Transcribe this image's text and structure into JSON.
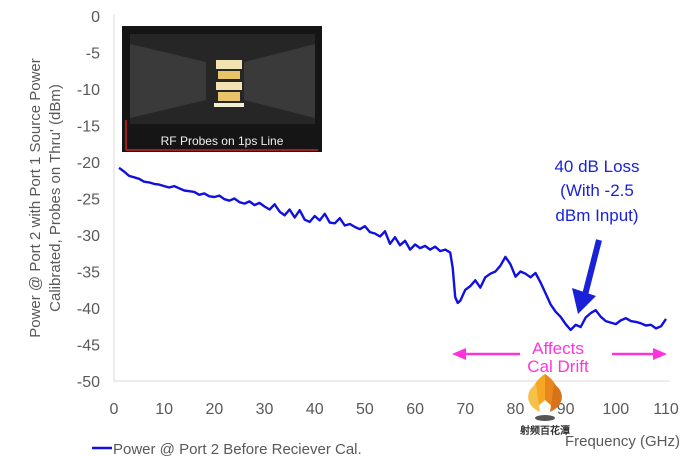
{
  "chart_data": {
    "type": "line",
    "xlabel": "Frequency (GHz)",
    "ylabel_lines": [
      "Power @ Port 2 with Port 1 Source Power",
      "Calibrated, Probes on Thru' (dBm)"
    ],
    "xlim": [
      0,
      110
    ],
    "ylim": [
      -50,
      0
    ],
    "x_ticks": [
      0,
      10,
      20,
      30,
      40,
      50,
      60,
      70,
      80,
      90,
      100,
      110
    ],
    "y_ticks": [
      0,
      -5,
      -10,
      -15,
      -20,
      -25,
      -30,
      -35,
      -40,
      -45,
      -50
    ],
    "grid": "none",
    "legend": "bottom-left",
    "series": [
      {
        "name": "Power @ Port 2 Before Reciever Cal.",
        "color": "#1010e0",
        "x": [
          1,
          2,
          3,
          4,
          5,
          6,
          7,
          8,
          9,
          10,
          11,
          12,
          13,
          14,
          15,
          16,
          17,
          18,
          19,
          20,
          21,
          22,
          23,
          24,
          25,
          26,
          27,
          28,
          29,
          30,
          31,
          32,
          33,
          34,
          35,
          36,
          37,
          38,
          39,
          40,
          41,
          42,
          43,
          44,
          45,
          46,
          47,
          48,
          49,
          50,
          51,
          52,
          53,
          54,
          55,
          56,
          57,
          58,
          59,
          60,
          61,
          62,
          63,
          64,
          65,
          66,
          67,
          67.5,
          68,
          68.5,
          69,
          70,
          71,
          72,
          73,
          74,
          75,
          76,
          77,
          78,
          79,
          80,
          81,
          82,
          83,
          84,
          85,
          86,
          87,
          88,
          89,
          90,
          91,
          92,
          93,
          94,
          95,
          96,
          97,
          98,
          99,
          100,
          101,
          102,
          103,
          104,
          105,
          106,
          107,
          108,
          109,
          110
        ],
        "y": [
          -20.8,
          -21.3,
          -21.9,
          -22.1,
          -22.3,
          -22.7,
          -22.8,
          -23.0,
          -23.1,
          -23.3,
          -23.5,
          -23.3,
          -23.6,
          -23.9,
          -24.0,
          -24.1,
          -24.5,
          -24.3,
          -24.7,
          -24.8,
          -24.6,
          -25.1,
          -25.3,
          -25.0,
          -25.5,
          -25.7,
          -25.4,
          -25.9,
          -25.6,
          -26.1,
          -26.5,
          -25.8,
          -26.8,
          -27.3,
          -26.5,
          -27.6,
          -26.6,
          -27.9,
          -28.2,
          -27.4,
          -28.0,
          -27.1,
          -28.3,
          -28.4,
          -27.7,
          -28.7,
          -28.5,
          -28.9,
          -29.2,
          -28.8,
          -29.6,
          -29.8,
          -30.2,
          -29.5,
          -31.2,
          -30.3,
          -31.4,
          -30.8,
          -32.0,
          -31.3,
          -31.8,
          -31.5,
          -32.0,
          -31.6,
          -32.2,
          -32.0,
          -32.4,
          -34.5,
          -38.5,
          -39.3,
          -39.0,
          -37.5,
          -37.0,
          -36.2,
          -37.2,
          -35.8,
          -35.3,
          -35.0,
          -34.2,
          -33.0,
          -34.0,
          -35.7,
          -35.0,
          -35.3,
          -35.8,
          -35.2,
          -36.5,
          -38.0,
          -39.5,
          -40.5,
          -41.2,
          -42.2,
          -43.0,
          -42.3,
          -42.6,
          -41.3,
          -40.7,
          -40.3,
          -41.2,
          -41.8,
          -42.0,
          -42.2,
          -41.7,
          -41.4,
          -41.8,
          -41.9,
          -42.1,
          -42.4,
          -42.3,
          -42.8,
          -42.5,
          -41.5
        ]
      }
    ],
    "annotations": {
      "loss_text": [
        "40 dB Loss",
        "(With -2.5",
        "dBm Input)"
      ],
      "drift_text": [
        "Affects",
        "Cal Drift"
      ],
      "inset_caption": "RF Probes on 1ps Line"
    }
  },
  "watermark_text": "射频百花潭"
}
